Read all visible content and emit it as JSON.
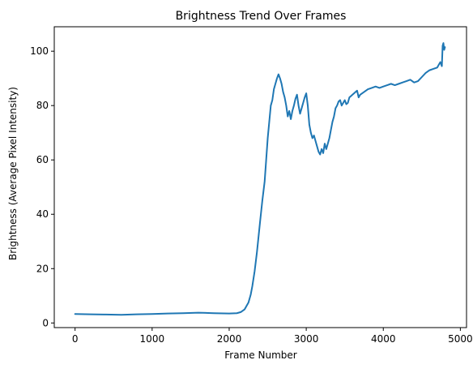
{
  "chart_data": {
    "type": "line",
    "title": "Brightness Trend Over Frames",
    "xlabel": "Frame Number",
    "ylabel": "Brightness (Average Pixel Intensity)",
    "xlim": [
      -270,
      5080
    ],
    "ylim": [
      -1.7,
      109
    ],
    "xticks": [
      0,
      1000,
      2000,
      3000,
      4000,
      5000
    ],
    "yticks": [
      0,
      20,
      40,
      60,
      80,
      100
    ],
    "grid": false,
    "legend": "none",
    "series": [
      {
        "color": "#1f77b4",
        "x": [
          0,
          200,
          400,
          600,
          800,
          1000,
          1200,
          1400,
          1600,
          1800,
          2000,
          2100,
          2150,
          2200,
          2250,
          2280,
          2300,
          2330,
          2360,
          2400,
          2430,
          2460,
          2480,
          2500,
          2520,
          2540,
          2560,
          2580,
          2600,
          2620,
          2640,
          2660,
          2680,
          2700,
          2720,
          2740,
          2760,
          2780,
          2800,
          2820,
          2840,
          2860,
          2880,
          2900,
          2920,
          2940,
          2960,
          2980,
          3000,
          3020,
          3040,
          3060,
          3080,
          3100,
          3120,
          3140,
          3160,
          3180,
          3200,
          3220,
          3240,
          3260,
          3280,
          3300,
          3320,
          3340,
          3360,
          3380,
          3400,
          3420,
          3440,
          3460,
          3480,
          3500,
          3520,
          3540,
          3560,
          3580,
          3600,
          3620,
          3640,
          3660,
          3680,
          3700,
          3750,
          3800,
          3850,
          3900,
          3950,
          4000,
          4050,
          4100,
          4150,
          4200,
          4250,
          4300,
          4350,
          4400,
          4450,
          4500,
          4550,
          4600,
          4650,
          4700,
          4720,
          4740,
          4760,
          4770,
          4780,
          4790,
          4800
        ],
        "y": [
          3.3,
          3.2,
          3.1,
          3.0,
          3.2,
          3.3,
          3.5,
          3.6,
          3.8,
          3.6,
          3.5,
          3.6,
          4.0,
          5.0,
          7.5,
          10.5,
          13.5,
          19.0,
          26.0,
          37.0,
          45.0,
          52.0,
          60.0,
          68.0,
          74.0,
          80.0,
          82.0,
          86.0,
          88.0,
          90.0,
          91.5,
          90.0,
          88.0,
          85.0,
          83.0,
          80.0,
          76.0,
          78.0,
          75.0,
          78.0,
          80.0,
          82.5,
          84.0,
          80.0,
          77.0,
          79.0,
          81.0,
          83.0,
          84.5,
          80.0,
          73.0,
          70.0,
          68.0,
          69.0,
          67.0,
          65.0,
          63.0,
          62.0,
          64.0,
          62.5,
          66.0,
          64.0,
          66.0,
          68.0,
          71.0,
          74.0,
          76.0,
          79.0,
          80.0,
          81.5,
          82.0,
          80.0,
          81.0,
          82.0,
          80.5,
          81.0,
          83.0,
          83.5,
          84.0,
          84.5,
          85.0,
          85.5,
          83.0,
          84.0,
          85.0,
          86.0,
          86.5,
          87.0,
          86.5,
          87.0,
          87.5,
          88.0,
          87.5,
          88.0,
          88.5,
          89.0,
          89.5,
          88.5,
          89.0,
          90.5,
          92.0,
          93.0,
          93.5,
          94.0,
          95.0,
          96.0,
          94.5,
          102.0,
          103.0,
          100.5,
          101.5
        ]
      }
    ]
  }
}
